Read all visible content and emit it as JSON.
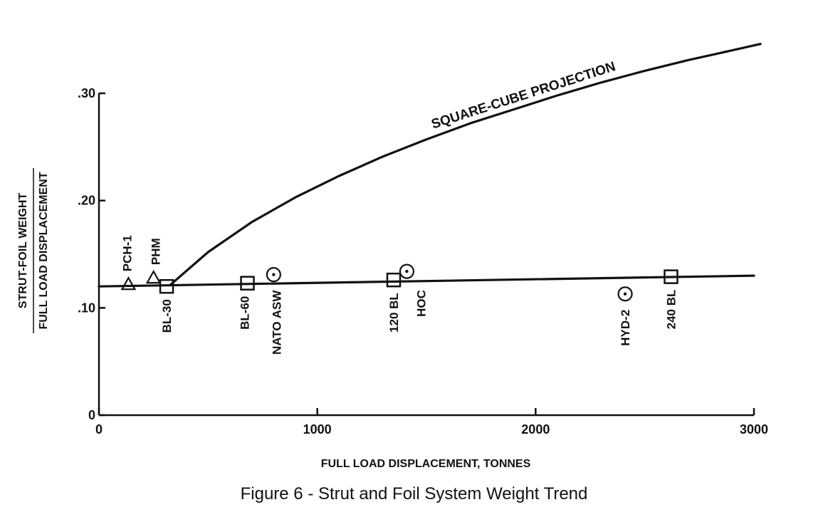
{
  "caption": "Figure 6 - Strut and Foil System Weight Trend",
  "chart_data": {
    "type": "scatter",
    "title": "",
    "xlabel": "FULL LOAD DISPLACEMENT, TONNES",
    "ylabel_numerator": "STRUT-FOIL WEIGHT",
    "ylabel_denominator": "FULL LOAD DISPLACEMENT",
    "xlim": [
      0,
      3000
    ],
    "ylim": [
      0,
      0.3
    ],
    "x_ticks": [
      0,
      1000,
      2000,
      3000
    ],
    "x_tick_labels": [
      "0",
      "1000",
      "2000",
      "3000"
    ],
    "y_ticks": [
      0,
      0.1,
      0.2,
      0.3
    ],
    "y_tick_labels": [
      "0",
      ".10",
      ".20",
      ".30"
    ],
    "grid": false,
    "curves": [
      {
        "label": "SQUARE-CUBE PROJECTION",
        "x": [
          330,
          500,
          700,
          900,
          1100,
          1300,
          1500,
          1700,
          1900,
          2100,
          2300,
          2500,
          2700,
          2900,
          3030
        ],
        "y": [
          0.122,
          0.152,
          0.18,
          0.203,
          0.223,
          0.241,
          0.257,
          0.272,
          0.285,
          0.298,
          0.31,
          0.321,
          0.331,
          0.34,
          0.346
        ]
      },
      {
        "label": "",
        "x": [
          0,
          3000
        ],
        "y": [
          0.12,
          0.13
        ]
      }
    ],
    "points": [
      {
        "label": "PCH-1",
        "marker": "triangle",
        "x": 135,
        "y": 0.122
      },
      {
        "label": "PHM",
        "marker": "triangle",
        "x": 250,
        "y": 0.128
      },
      {
        "label": "BL-30",
        "marker": "square",
        "x": 310,
        "y": 0.12
      },
      {
        "label": "BL-60",
        "marker": "square",
        "x": 680,
        "y": 0.123
      },
      {
        "label": "NATO ASW",
        "marker": "circle-dot",
        "x": 800,
        "y": 0.131
      },
      {
        "label": "120 BL",
        "marker": "square",
        "x": 1350,
        "y": 0.126
      },
      {
        "label": "HOC",
        "marker": "circle-dot",
        "x": 1410,
        "y": 0.134
      },
      {
        "label": "HYD-2",
        "marker": "circle-dot",
        "x": 2410,
        "y": 0.113
      },
      {
        "label": "240 BL",
        "marker": "square",
        "x": 2620,
        "y": 0.129
      }
    ]
  }
}
